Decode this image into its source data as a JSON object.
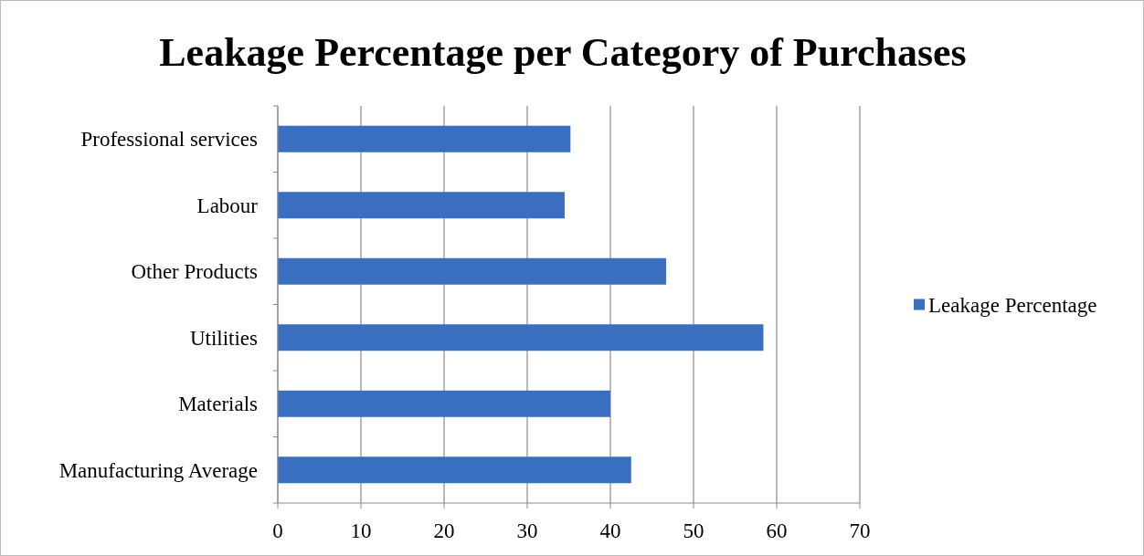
{
  "chart_data": {
    "type": "bar",
    "orientation": "horizontal",
    "title": "Leakage Percentage per Category of Purchases",
    "categories": [
      "Professional services",
      "Labour",
      "Other Products",
      "Utilities",
      "Materials",
      "Manufacturing Average"
    ],
    "series": [
      {
        "name": "Leakage Percentage",
        "color": "#3a6fbf",
        "values": [
          35.2,
          34.5,
          46.7,
          58.4,
          40,
          42.5
        ]
      }
    ],
    "xlim": [
      0,
      70
    ],
    "xticks": [
      0,
      10,
      20,
      30,
      40,
      50,
      60,
      70
    ],
    "grid": "x",
    "legend": "right"
  }
}
